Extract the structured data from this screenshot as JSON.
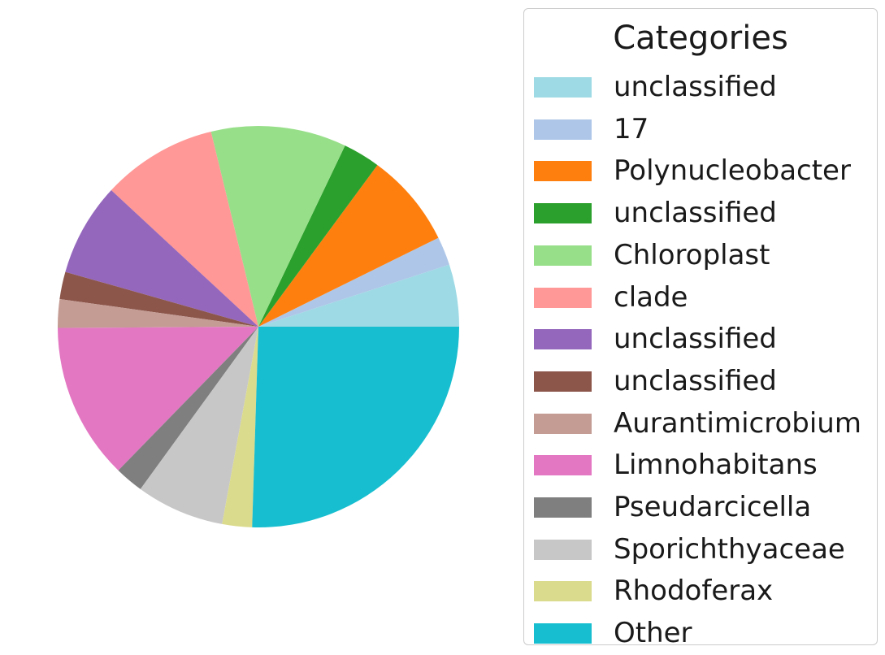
{
  "chart_data": {
    "type": "pie",
    "legend_title": "Categories",
    "legend_placement": "right",
    "start_angle_deg": 0,
    "direction": "counterclockwise",
    "slices": [
      {
        "label": "unclassified",
        "value": 5.0,
        "color": "#9edae5"
      },
      {
        "label": "17",
        "value": 2.3,
        "color": "#aec7e8"
      },
      {
        "label": "Polynucleobacter",
        "value": 7.6,
        "color": "#ff7f0e"
      },
      {
        "label": "unclassified",
        "value": 3.0,
        "color": "#2ca02c"
      },
      {
        "label": "Chloroplast",
        "value": 10.9,
        "color": "#98df8a"
      },
      {
        "label": "clade",
        "value": 9.3,
        "color": "#ff9896"
      },
      {
        "label": "unclassified",
        "value": 7.5,
        "color": "#9467bd"
      },
      {
        "label": "unclassified",
        "value": 2.2,
        "color": "#8c564b"
      },
      {
        "label": "Aurantimicrobium",
        "value": 2.3,
        "color": "#c49c94"
      },
      {
        "label": "Limnohabitans",
        "value": 12.6,
        "color": "#e377c2"
      },
      {
        "label": "Pseudarcicella",
        "value": 2.3,
        "color": "#7f7f7f"
      },
      {
        "label": "Sporichthyaceae",
        "value": 7.1,
        "color": "#c7c7c7"
      },
      {
        "label": "Rhodoferax",
        "value": 2.4,
        "color": "#dbdb8d"
      },
      {
        "label": "Other",
        "value": 25.5,
        "color": "#17becf"
      }
    ]
  }
}
